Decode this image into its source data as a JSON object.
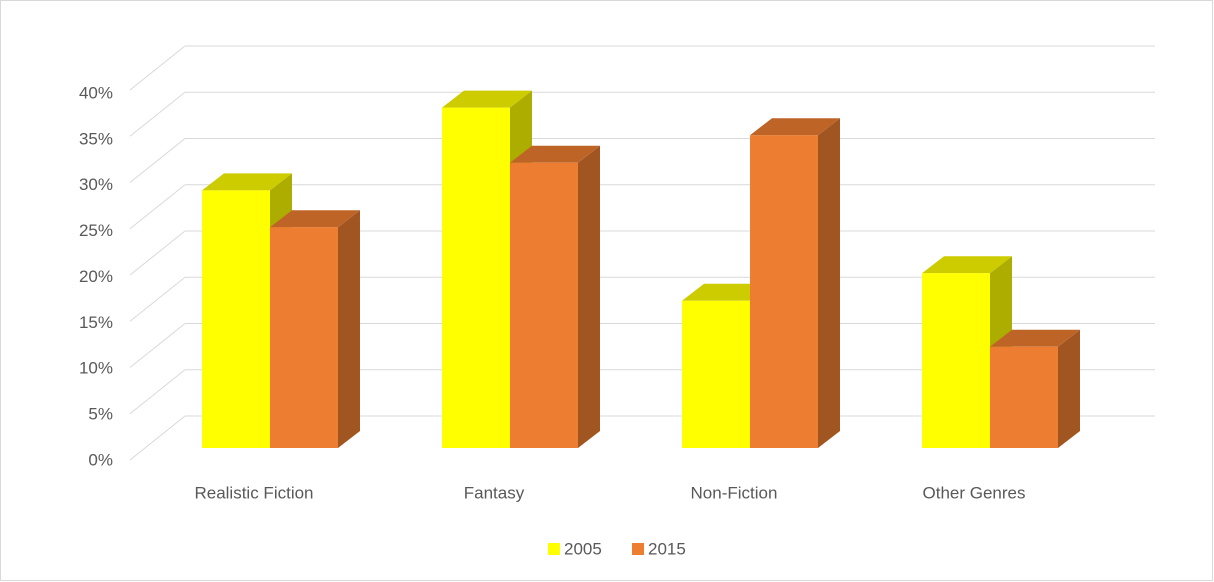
{
  "chart_data": {
    "type": "bar3d",
    "categories": [
      "Realistic Fiction",
      "Fantasy",
      "Non-Fiction",
      "Other Genres"
    ],
    "series": [
      {
        "name": "2005",
        "color": "#ffff00",
        "values": [
          28,
          37,
          16,
          19
        ]
      },
      {
        "name": "2015",
        "color": "#ed7d31",
        "values": [
          24,
          31,
          34,
          11
        ]
      }
    ],
    "ylim": [
      0,
      40
    ],
    "yticks": [
      {
        "value": 0,
        "label": "0%"
      },
      {
        "value": 5,
        "label": "5%"
      },
      {
        "value": 10,
        "label": "10%"
      },
      {
        "value": 15,
        "label": "15%"
      },
      {
        "value": 20,
        "label": "20%"
      },
      {
        "value": 25,
        "label": "25%"
      },
      {
        "value": 30,
        "label": "30%"
      },
      {
        "value": 35,
        "label": "35%"
      },
      {
        "value": 40,
        "label": "40%"
      }
    ],
    "grid": true,
    "legend": "bottom"
  }
}
